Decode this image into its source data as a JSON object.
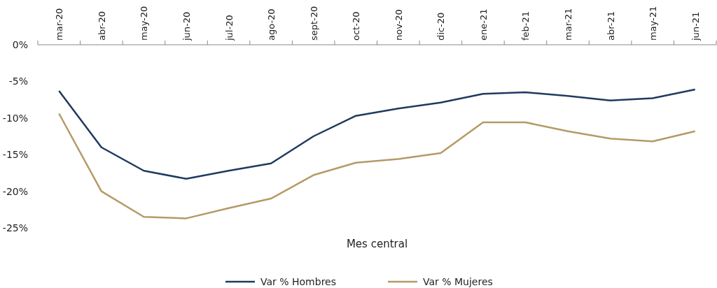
{
  "chart_data": {
    "type": "line",
    "xlabel": "Mes central",
    "categories": [
      "mar-20",
      "abr-20",
      "may-20",
      "jun-20",
      "jul-20",
      "ago-20",
      "sept-20",
      "oct-20",
      "nov-20",
      "dic-20",
      "ene-21",
      "feb-21",
      "mar-21",
      "abr-21",
      "may-21",
      "jun-21"
    ],
    "series": [
      {
        "name": "Var % Hombres",
        "color": "#1f3a5f",
        "values": [
          -6.3,
          -14.0,
          -17.2,
          -18.3,
          -17.2,
          -16.2,
          -12.5,
          -9.7,
          -8.7,
          -7.9,
          -6.7,
          -6.5,
          -7.0,
          -7.6,
          -7.3,
          -6.1
        ]
      },
      {
        "name": "Var % Mujeres",
        "color": "#b59a66",
        "values": [
          -9.4,
          -20.0,
          -23.5,
          -23.7,
          -22.3,
          -21.0,
          -17.8,
          -16.1,
          -15.6,
          -14.8,
          -10.6,
          -10.6,
          -11.8,
          -12.8,
          -13.2,
          -11.8
        ]
      }
    ],
    "ylim": [
      -25,
      0
    ],
    "yticks": [
      {
        "value": 0,
        "label": "0%"
      },
      {
        "value": -5,
        "label": "-5%"
      },
      {
        "value": -10,
        "label": "-10%"
      },
      {
        "value": -15,
        "label": "-15%"
      },
      {
        "value": -20,
        "label": "-20%"
      },
      {
        "value": -25,
        "label": "-25%"
      }
    ],
    "grid": false,
    "legend": "bottom",
    "marker": "none",
    "line_style": "solid"
  }
}
